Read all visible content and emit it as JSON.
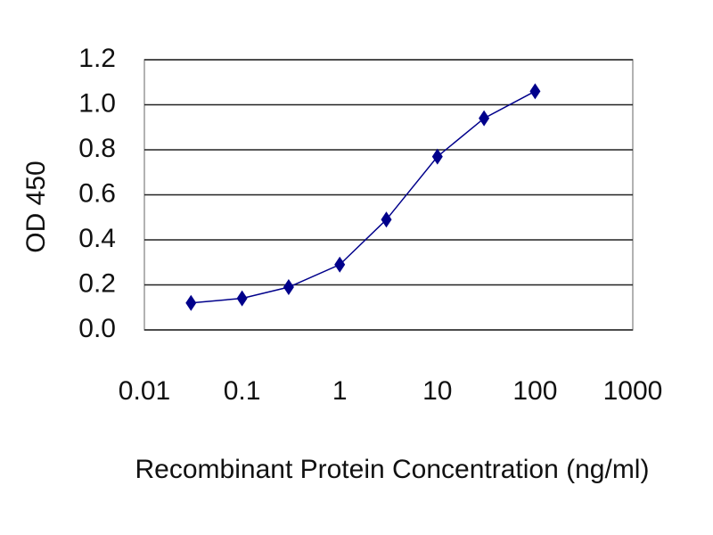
{
  "chart_data": {
    "type": "line",
    "xlabel": "Recombinant Protein Concentration (ng/ml)",
    "ylabel": "OD 450",
    "x": [
      0.03,
      0.1,
      0.3,
      1,
      3,
      10,
      30,
      100
    ],
    "values": [
      0.12,
      0.14,
      0.19,
      0.29,
      0.49,
      0.77,
      0.94,
      1.06
    ],
    "color": "#00008b",
    "xscale": "log",
    "xlim": [
      0.01,
      1000
    ],
    "xticks": [
      0.01,
      0.1,
      1,
      10,
      100,
      1000
    ],
    "ylim": [
      0,
      1.2
    ],
    "yticks": [
      {
        "value": 0,
        "label": "0.0"
      },
      0.2,
      0.4,
      0.6,
      0.8,
      {
        "value": 1,
        "label": "1.0"
      },
      1.2
    ],
    "grid": true
  }
}
